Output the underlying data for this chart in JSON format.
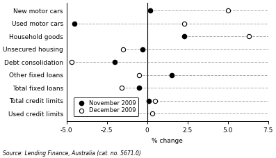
{
  "categories": [
    "New motor cars",
    "Used motor cars",
    "Household goods",
    "Unsecured housing",
    "Debt consolidation",
    "Other fixed loans",
    "Total fixed loans",
    "Total credit limits",
    "Used credit limits"
  ],
  "november_2009": [
    0.2,
    -4.5,
    2.3,
    -0.3,
    -2.0,
    1.5,
    -0.5,
    0.1,
    -0.7
  ],
  "december_2009": [
    5.0,
    2.3,
    6.3,
    -1.5,
    -4.7,
    -0.5,
    -1.6,
    0.5,
    0.3
  ],
  "xlim": [
    -5.0,
    7.5
  ],
  "xticks": [
    -5.0,
    -2.5,
    0.0,
    2.5,
    5.0,
    7.5
  ],
  "xtick_labels": [
    "-5.0",
    "-2.5",
    "0",
    "2.5",
    "5.0",
    "7.5"
  ],
  "xlabel": "% change",
  "nov_color": "black",
  "dec_color": "white",
  "nov_label": "November 2009",
  "dec_label": "December 2009",
  "dashed_color": "#aaaaaa",
  "line_extend_to": 7.5,
  "source_text": "Source: Lending Finance, Australia (cat. no. 5671.0)",
  "background_color": "#ffffff",
  "axis_fontsize": 6.5,
  "tick_fontsize": 6.5,
  "legend_fontsize": 6.0,
  "source_fontsize": 5.5,
  "marker_size": 4.5
}
